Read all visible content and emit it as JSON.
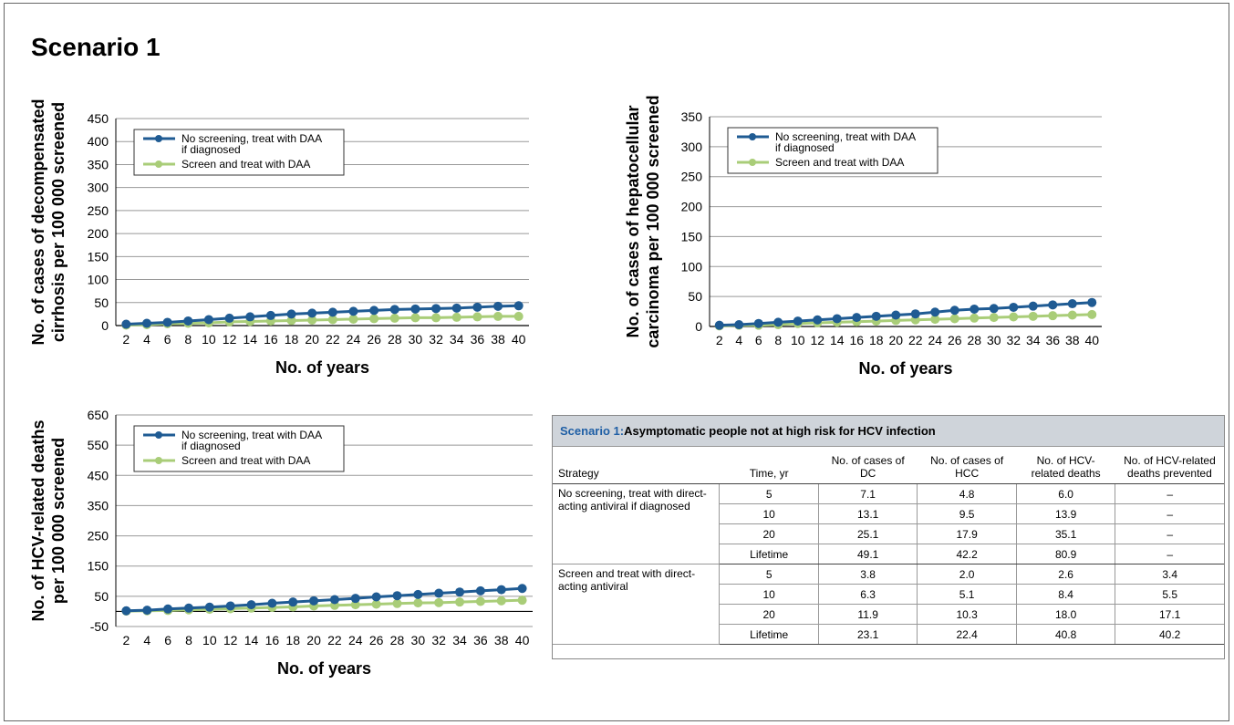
{
  "title": "Scenario 1",
  "colors": {
    "no_screen": "#1f5b93",
    "screen": "#a9cd78",
    "grid": "#999999"
  },
  "chart_data": [
    {
      "type": "line",
      "id": "dc",
      "xlabel": "No. of years",
      "ylabel": [
        "No. of cases of decompensated",
        "cirrhosis per 100 000 screened"
      ],
      "ylim": [
        0,
        450
      ],
      "yticks": [
        0,
        50,
        100,
        150,
        200,
        250,
        300,
        350,
        400,
        450
      ],
      "grid": true,
      "legend": "top-left",
      "x": [
        2,
        4,
        6,
        8,
        10,
        12,
        14,
        16,
        18,
        20,
        22,
        24,
        26,
        28,
        30,
        32,
        34,
        36,
        38,
        40
      ],
      "series": [
        {
          "name": "No screening, treat with DAA if diagnosed",
          "values": [
            3,
            5,
            7,
            10,
            13,
            16,
            19,
            22,
            25,
            27,
            29,
            31,
            33,
            35,
            36,
            37,
            38,
            40,
            42,
            43
          ]
        },
        {
          "name": "Screen and treat with DAA",
          "values": [
            1,
            2,
            4,
            5,
            6,
            8,
            9,
            10,
            11,
            12,
            13,
            14,
            15,
            16,
            17,
            17,
            18,
            19,
            20,
            20
          ]
        }
      ]
    },
    {
      "type": "line",
      "id": "hcc",
      "xlabel": "No. of years",
      "ylabel": [
        "No. of cases of hepatocellular",
        "carcinoma per 100 000 screened"
      ],
      "ylim": [
        0,
        350
      ],
      "yticks": [
        0,
        50,
        100,
        150,
        200,
        250,
        300,
        350
      ],
      "grid": true,
      "legend": "top-left",
      "x": [
        2,
        4,
        6,
        8,
        10,
        12,
        14,
        16,
        18,
        20,
        22,
        24,
        26,
        28,
        30,
        32,
        34,
        36,
        38,
        40
      ],
      "series": [
        {
          "name": "No screening, treat with DAA if diagnosed",
          "values": [
            2,
            3,
            5,
            7,
            9,
            11,
            13,
            15,
            17,
            19,
            21,
            24,
            27,
            29,
            30,
            32,
            34,
            36,
            38,
            40
          ]
        },
        {
          "name": "Screen and treat with DAA",
          "values": [
            1,
            2,
            2,
            3,
            5,
            6,
            7,
            8,
            9,
            10,
            11,
            12,
            13,
            14,
            15,
            16,
            17,
            18,
            19,
            20
          ]
        }
      ]
    },
    {
      "type": "line",
      "id": "deaths",
      "xlabel": "No. of years",
      "ylabel": [
        "No. of HCV-related deaths",
        "per 100 000 screened"
      ],
      "ylim": [
        -50,
        650
      ],
      "yticks": [
        -50,
        50,
        150,
        250,
        350,
        450,
        550,
        650
      ],
      "grid": true,
      "legend": "top-left",
      "x": [
        2,
        4,
        6,
        8,
        10,
        12,
        14,
        16,
        18,
        20,
        22,
        24,
        26,
        28,
        30,
        32,
        34,
        36,
        38,
        40
      ],
      "series": [
        {
          "name": "No screening, treat with DAA if diagnosed",
          "values": [
            2,
            4,
            8,
            11,
            14,
            18,
            22,
            27,
            31,
            35,
            39,
            43,
            48,
            52,
            56,
            60,
            64,
            68,
            72,
            76
          ]
        },
        {
          "name": "Screen and treat with DAA",
          "values": [
            1,
            2,
            3,
            5,
            7,
            9,
            11,
            13,
            15,
            18,
            20,
            22,
            24,
            26,
            28,
            29,
            31,
            33,
            35,
            37
          ]
        }
      ]
    },
    {
      "type": "table",
      "id": "results",
      "title_prefix": "Scenario 1:",
      "title_rest": " Asymptomatic people not at  high risk for HCV infection",
      "columns": [
        "Strategy",
        "Time, yr",
        "No. of cases of DC",
        "No. of cases of HCC",
        "No. of HCV-related deaths",
        "No. of HCV-related deaths prevented"
      ],
      "groups": [
        {
          "strategy": "No screening, treat with direct-acting antiviral if diagnosed",
          "rows": [
            [
              "5",
              "7.1",
              "4.8",
              "6.0",
              "–"
            ],
            [
              "10",
              "13.1",
              "9.5",
              "13.9",
              "–"
            ],
            [
              "20",
              "25.1",
              "17.9",
              "35.1",
              "–"
            ],
            [
              "Lifetime",
              "49.1",
              "42.2",
              "80.9",
              "–"
            ]
          ]
        },
        {
          "strategy": "Screen and treat with direct-acting antiviral",
          "rows": [
            [
              "5",
              "3.8",
              "2.0",
              "2.6",
              "3.4"
            ],
            [
              "10",
              "6.3",
              "5.1",
              "8.4",
              "5.5"
            ],
            [
              "20",
              "11.9",
              "10.3",
              "18.0",
              "17.1"
            ],
            [
              "Lifetime",
              "23.1",
              "22.4",
              "40.8",
              "40.2"
            ]
          ]
        }
      ]
    }
  ]
}
